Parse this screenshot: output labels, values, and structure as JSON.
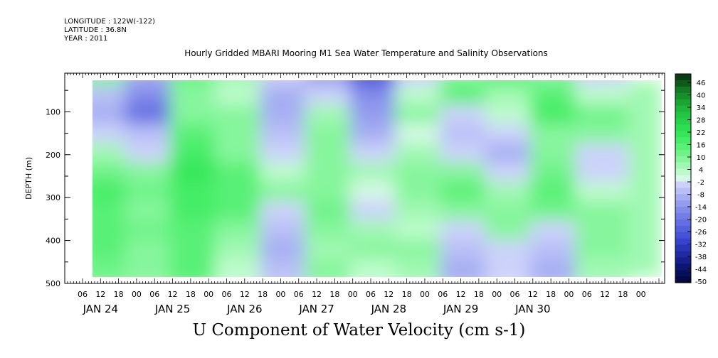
{
  "header": {
    "longitude": "LONGITUDE : 122W(-122)",
    "latitude": "LATITUDE : 36.8N",
    "year": "YEAR : 2011"
  },
  "chart_data": {
    "type": "heatmap",
    "title": "Hourly Gridded MBARI Mooring M1 Sea Water Temperature and Salinity Observations",
    "xlabel": "U Component of Water Velocity (cm s-1)",
    "ylabel": "DEPTH (m)",
    "y_ticks": [
      100,
      200,
      300,
      400,
      500
    ],
    "ylim": [
      500,
      10
    ],
    "x_hour_labels": [
      "06",
      "12",
      "18",
      "00",
      "06",
      "12",
      "18",
      "00",
      "06",
      "12",
      "18",
      "00",
      "06",
      "12",
      "18",
      "00",
      "06",
      "12",
      "18",
      "00",
      "06",
      "12",
      "18",
      "00",
      "06",
      "12",
      "18",
      "00",
      "06",
      "12",
      "18",
      "00"
    ],
    "x_day_labels": [
      "JAN 24",
      "JAN 25",
      "JAN 26",
      "JAN 27",
      "JAN 28",
      "JAN 29",
      "JAN 30"
    ],
    "colorbar_labels": [
      "46",
      "40",
      "34",
      "28",
      "22",
      "16",
      "10",
      "4",
      "-2",
      "-8",
      "-14",
      "-20",
      "-26",
      "-32",
      "-38",
      "-44",
      "-50"
    ],
    "colorbar_levels": [
      46,
      43,
      40,
      37,
      34,
      31,
      28,
      25,
      22,
      19,
      16,
      13,
      10,
      7,
      4,
      1,
      -2,
      -5,
      -8,
      -11,
      -14,
      -17,
      -20,
      -23,
      -26,
      -29,
      -32,
      -35,
      -38,
      -41,
      -44,
      -47,
      -50
    ],
    "colorbar_colors": [
      "#0a3d12",
      "#0d5a1a",
      "#127a22",
      "#16902a",
      "#1aa532",
      "#1eb83a",
      "#22c542",
      "#27d24a",
      "#2dde52",
      "#36e65a",
      "#45ec66",
      "#58f076",
      "#6ef388",
      "#86f59c",
      "#a0f8b2",
      "#bdfbcc",
      "#d6f8e6",
      "#ccd2fa",
      "#b9c0f6",
      "#a6aef2",
      "#949cee",
      "#848cea",
      "#747de6",
      "#646ee2",
      "#5560de",
      "#4652d8",
      "#3644cc",
      "#2a36b8",
      "#1f2aa4",
      "#161f8c",
      "#0e1674",
      "#080f5a",
      "#040a44"
    ],
    "field_summary": {
      "z_grid_depth": [
        25,
        70,
        115,
        160,
        205,
        250,
        295,
        340,
        385,
        430,
        475
      ],
      "z_grid_time_hours_from_jan24_00": [
        14,
        29,
        44,
        59,
        74,
        89,
        104,
        119,
        134,
        149,
        164,
        179
      ],
      "z_values_cm_s": [
        [
          6,
          -10,
          10,
          4,
          -6,
          -14,
          -30,
          -6,
          6,
          14,
          8,
          -6
        ],
        [
          -8,
          -16,
          8,
          2,
          -10,
          -6,
          -18,
          2,
          12,
          4,
          14,
          2
        ],
        [
          -10,
          -22,
          6,
          8,
          -12,
          4,
          -14,
          6,
          -4,
          2,
          16,
          10
        ],
        [
          -4,
          -8,
          14,
          6,
          -8,
          6,
          -10,
          -2,
          -8,
          -6,
          8,
          6
        ],
        [
          4,
          -4,
          16,
          8,
          -4,
          8,
          -6,
          4,
          -6,
          -10,
          6,
          -4
        ],
        [
          10,
          6,
          18,
          12,
          2,
          6,
          4,
          8,
          8,
          -6,
          10,
          -6
        ],
        [
          16,
          10,
          16,
          14,
          6,
          8,
          -2,
          6,
          12,
          4,
          14,
          2
        ],
        [
          14,
          8,
          16,
          12,
          -6,
          10,
          -6,
          4,
          8,
          8,
          10,
          6
        ],
        [
          12,
          10,
          12,
          8,
          -8,
          6,
          4,
          2,
          -6,
          6,
          -6,
          8
        ],
        [
          12,
          8,
          14,
          4,
          -10,
          4,
          6,
          6,
          -8,
          -4,
          -8,
          6
        ],
        [
          10,
          6,
          12,
          2,
          -8,
          8,
          2,
          4,
          -10,
          -6,
          -10,
          4
        ]
      ]
    }
  }
}
